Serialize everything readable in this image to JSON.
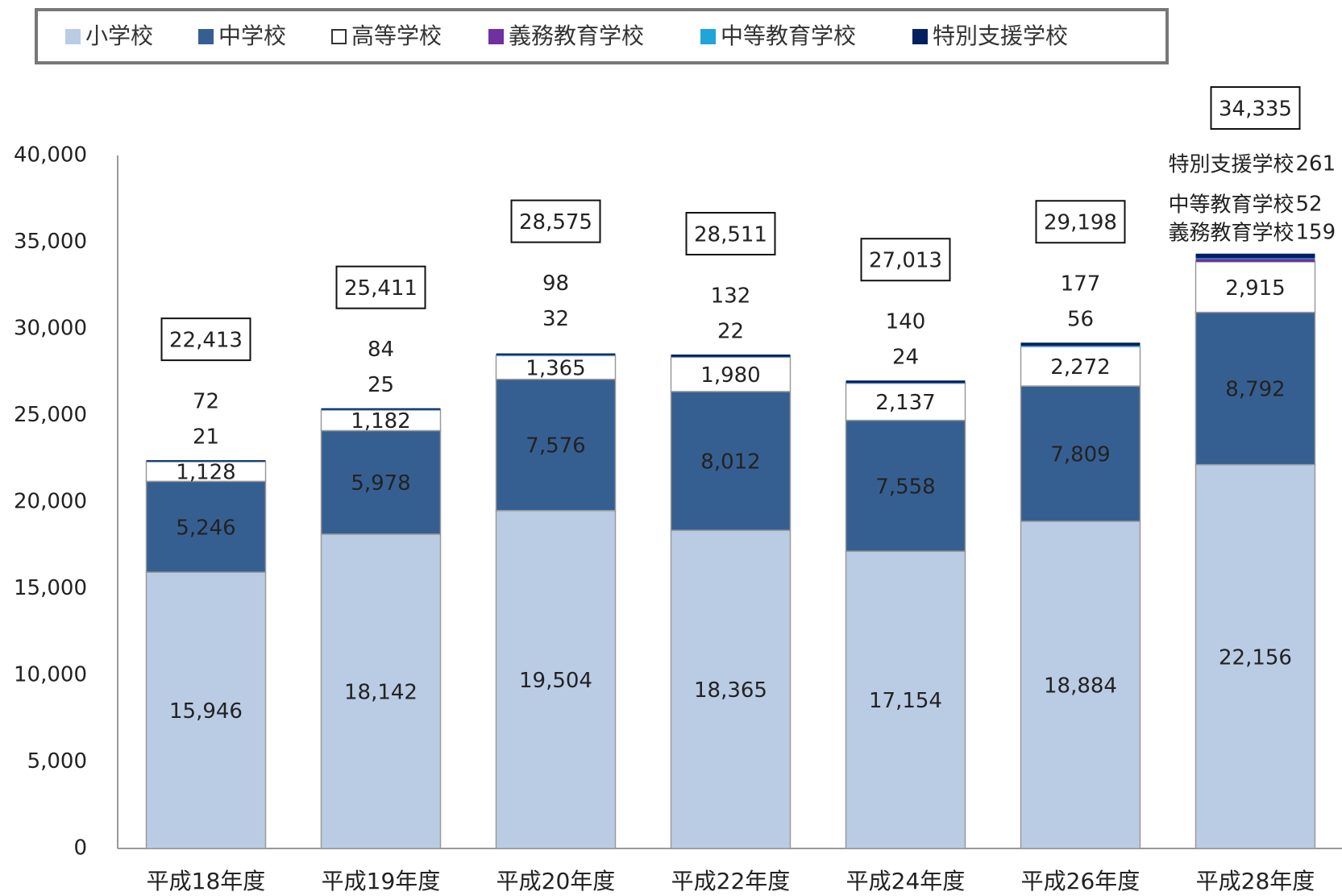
{
  "chart_data": {
    "type": "stacked-bar",
    "categories": [
      "平成18年度",
      "平成19年度",
      "平成20年度",
      "平成22年度",
      "平成24年度",
      "平成26年度",
      "平成28年度"
    ],
    "series": [
      {
        "name": "小学校",
        "color": "#b9cce4",
        "values": [
          15946,
          18142,
          19504,
          18365,
          17154,
          18884,
          22156
        ],
        "value_labels": [
          "15,946",
          "18,142",
          "19,504",
          "18,365",
          "17,154",
          "18,884",
          "22,156"
        ]
      },
      {
        "name": "中学校",
        "color": "#365f91",
        "values": [
          5246,
          5978,
          7576,
          8012,
          7558,
          7809,
          8792
        ],
        "value_labels": [
          "5,246",
          "5,978",
          "7,576",
          "8,012",
          "7,558",
          "7,809",
          "8,792"
        ]
      },
      {
        "name": "高等学校",
        "color": "#ffffff",
        "values": [
          1128,
          1182,
          1365,
          1980,
          2137,
          2272,
          2915
        ],
        "value_labels": [
          "1,128",
          "1,182",
          "1,365",
          "1,980",
          "2,137",
          "2,272",
          "2,915"
        ]
      },
      {
        "name": "義務教育学校",
        "color": "#7030a0",
        "values": [
          null,
          null,
          null,
          null,
          null,
          null,
          159
        ]
      },
      {
        "name": "中等教育学校",
        "color": "#1fa5d8",
        "values": [
          21,
          25,
          32,
          22,
          24,
          56,
          52
        ]
      },
      {
        "name": "特別支援学校",
        "color": "#002060",
        "values": [
          72,
          84,
          98,
          132,
          140,
          177,
          261
        ]
      }
    ],
    "totals": [
      22413,
      25411,
      28575,
      28511,
      27013,
      29198,
      34335
    ],
    "total_labels": [
      "22,413",
      "25,411",
      "28,575",
      "28,511",
      "27,013",
      "29,198",
      "34,335"
    ],
    "ylim": [
      0,
      40000
    ],
    "yticks": [
      0,
      {
        "value": 5000,
        "label": "5,000"
      },
      {
        "value": 10000,
        "label": "10,000"
      },
      {
        "value": 15000,
        "label": "15,000"
      },
      {
        "value": 20000,
        "label": "20,000"
      },
      {
        "value": 25000,
        "label": "25,000"
      },
      {
        "value": 30000,
        "label": "30,000"
      },
      {
        "value": 35000,
        "label": "35,000"
      },
      {
        "value": 40000,
        "label": "40,000"
      }
    ],
    "legend": "top"
  }
}
